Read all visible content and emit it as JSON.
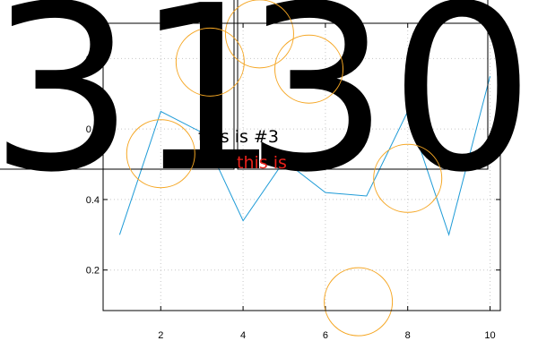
{
  "chart_data": {
    "type": "line",
    "xlim": [
      0.6,
      10.25
    ],
    "ylim": [
      0.085,
      0.9
    ],
    "x_ticks": [
      2,
      4,
      6,
      8,
      10
    ],
    "y_ticks": [
      0.2,
      0.4,
      0.6,
      0.8
    ],
    "x_tick_labels": [
      "2",
      "4",
      "6",
      "8",
      "10"
    ],
    "y_tick_labels": [
      "0.2",
      "0.4",
      "0.6",
      "0.8"
    ],
    "grid": true,
    "series": [
      {
        "color": "#1e9bd7",
        "x": [
          1,
          2,
          3,
          4,
          5,
          6,
          7,
          8,
          9,
          10
        ],
        "y": [
          0.3,
          0.65,
          0.59,
          0.34,
          0.51,
          0.42,
          0.41,
          0.65,
          0.3,
          0.75
        ]
      }
    ],
    "circles": {
      "color": "#f5a623",
      "points": [
        {
          "x": 2.0,
          "y": 0.53
        },
        {
          "x": 3.2,
          "y": 0.79
        },
        {
          "x": 4.4,
          "y": 0.87
        },
        {
          "x": 5.6,
          "y": 0.77
        },
        {
          "x": 6.8,
          "y": 0.11
        },
        {
          "x": 8.0,
          "y": 0.46
        }
      ]
    },
    "annotations": [
      {
        "text": "this is #3",
        "color": "#000000"
      },
      {
        "text": "this is",
        "color": "#e8201a"
      }
    ],
    "inset_labels": [
      "31",
      "30"
    ]
  }
}
